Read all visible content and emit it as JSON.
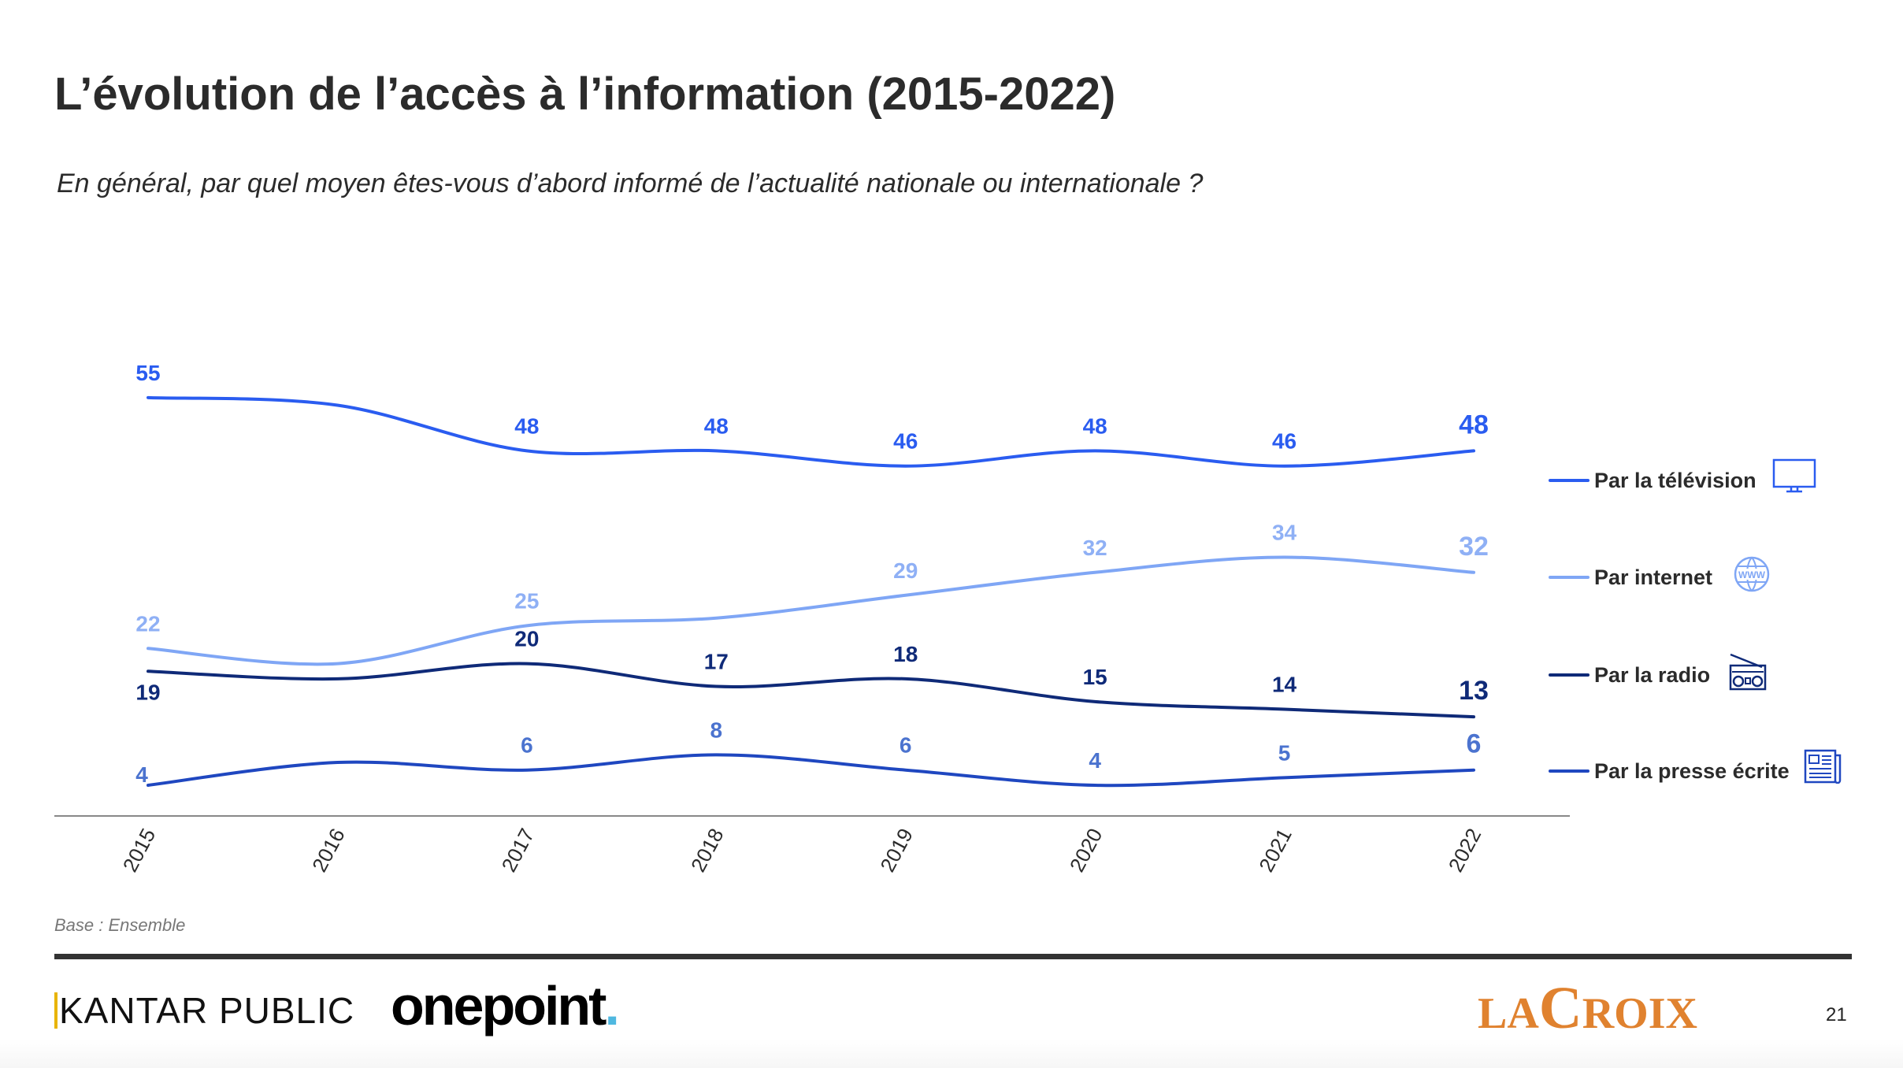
{
  "title": "L’évolution de l’accès à l’information (2015-2022)",
  "subtitle": "En général, par quel moyen êtes-vous d’abord informé de l’actualité nationale ou internationale ?",
  "base_note": "Base : Ensemble",
  "footer": {
    "kantar": "KANTAR PUBLIC",
    "onepoint": "onepoint",
    "onepoint_dot": ".",
    "lacroix_a": "LA",
    "lacroix_b": "C",
    "lacroix_c": "ROIX",
    "page_number": "21"
  },
  "chart_data": {
    "type": "line",
    "title": "L’évolution de l’accès à l’information (2015-2022)",
    "xlabel": "",
    "ylabel": "",
    "x": [
      "2015",
      "2016",
      "2017",
      "2018",
      "2019",
      "2020",
      "2021",
      "2022"
    ],
    "ylim": [
      0,
      60
    ],
    "grid": false,
    "legend_position": "right",
    "series": [
      {
        "name": "Par la télévision",
        "color": "#2a5cf0",
        "label_color": "#2a5cf0",
        "icon": "tv-icon",
        "values": [
          55,
          54,
          48,
          48,
          46,
          48,
          46,
          48
        ],
        "labeled": [
          true,
          false,
          true,
          true,
          true,
          true,
          true,
          true
        ]
      },
      {
        "name": "Par internet",
        "color": "#7fa6f5",
        "label_color": "#8fb0f5",
        "icon": "www-globe-icon",
        "values": [
          22,
          20,
          25,
          26,
          29,
          32,
          34,
          32
        ],
        "labeled": [
          true,
          false,
          true,
          false,
          true,
          true,
          true,
          true
        ]
      },
      {
        "name": "Par la radio",
        "color": "#0f2a78",
        "label_color": "#0f2a78",
        "icon": "radio-icon",
        "values": [
          19,
          18,
          20,
          17,
          18,
          15,
          14,
          13
        ],
        "labeled": [
          true,
          false,
          true,
          true,
          true,
          true,
          true,
          true
        ]
      },
      {
        "name": "Par la presse écrite",
        "color": "#1f47c0",
        "label_color": "#4b73cf",
        "icon": "newspaper-icon",
        "values": [
          4,
          7,
          6,
          8,
          6,
          4,
          5,
          6
        ],
        "labeled": [
          true,
          false,
          true,
          true,
          true,
          true,
          true,
          true
        ]
      }
    ]
  }
}
